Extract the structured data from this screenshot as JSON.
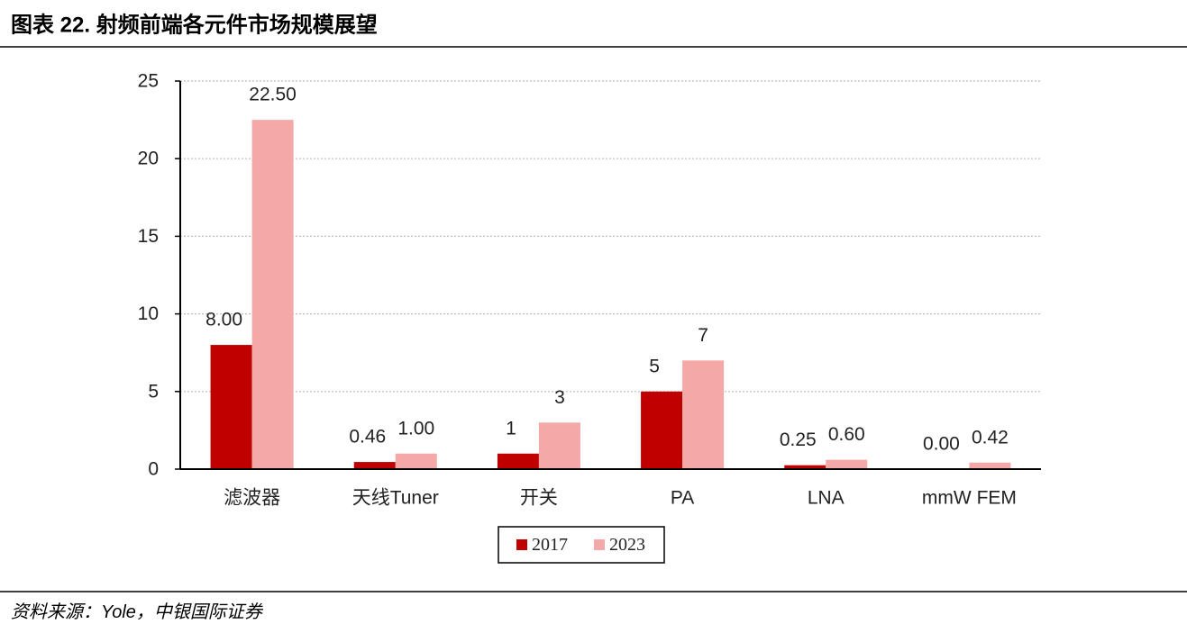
{
  "chart_data": {
    "type": "bar",
    "title": "图表 22. 射频前端各元件市场规模展望",
    "source": "资料来源：Yole，中银国际证券",
    "categories": [
      "滤波器",
      "天线Tuner",
      "开关",
      "PA",
      "LNA",
      "mmW FEM"
    ],
    "series": [
      {
        "name": "2017",
        "color": "#c00000",
        "values": [
          8,
          0.46,
          1,
          5,
          0.25,
          0
        ],
        "value_labels": [
          "8.00",
          "0.46",
          "1",
          "5",
          "0.25",
          "0.00"
        ]
      },
      {
        "name": "2023",
        "color": "#f4a9a8",
        "values": [
          22.5,
          1,
          3,
          7,
          0.6,
          0.42
        ],
        "value_labels": [
          "22.50",
          "1.00",
          "3",
          "7",
          "0.60",
          "0.42"
        ]
      }
    ],
    "ylim": [
      0,
      25
    ],
    "yticks": [
      0,
      5,
      10,
      15,
      20,
      25
    ],
    "grid": true,
    "legend": "bottom"
  }
}
